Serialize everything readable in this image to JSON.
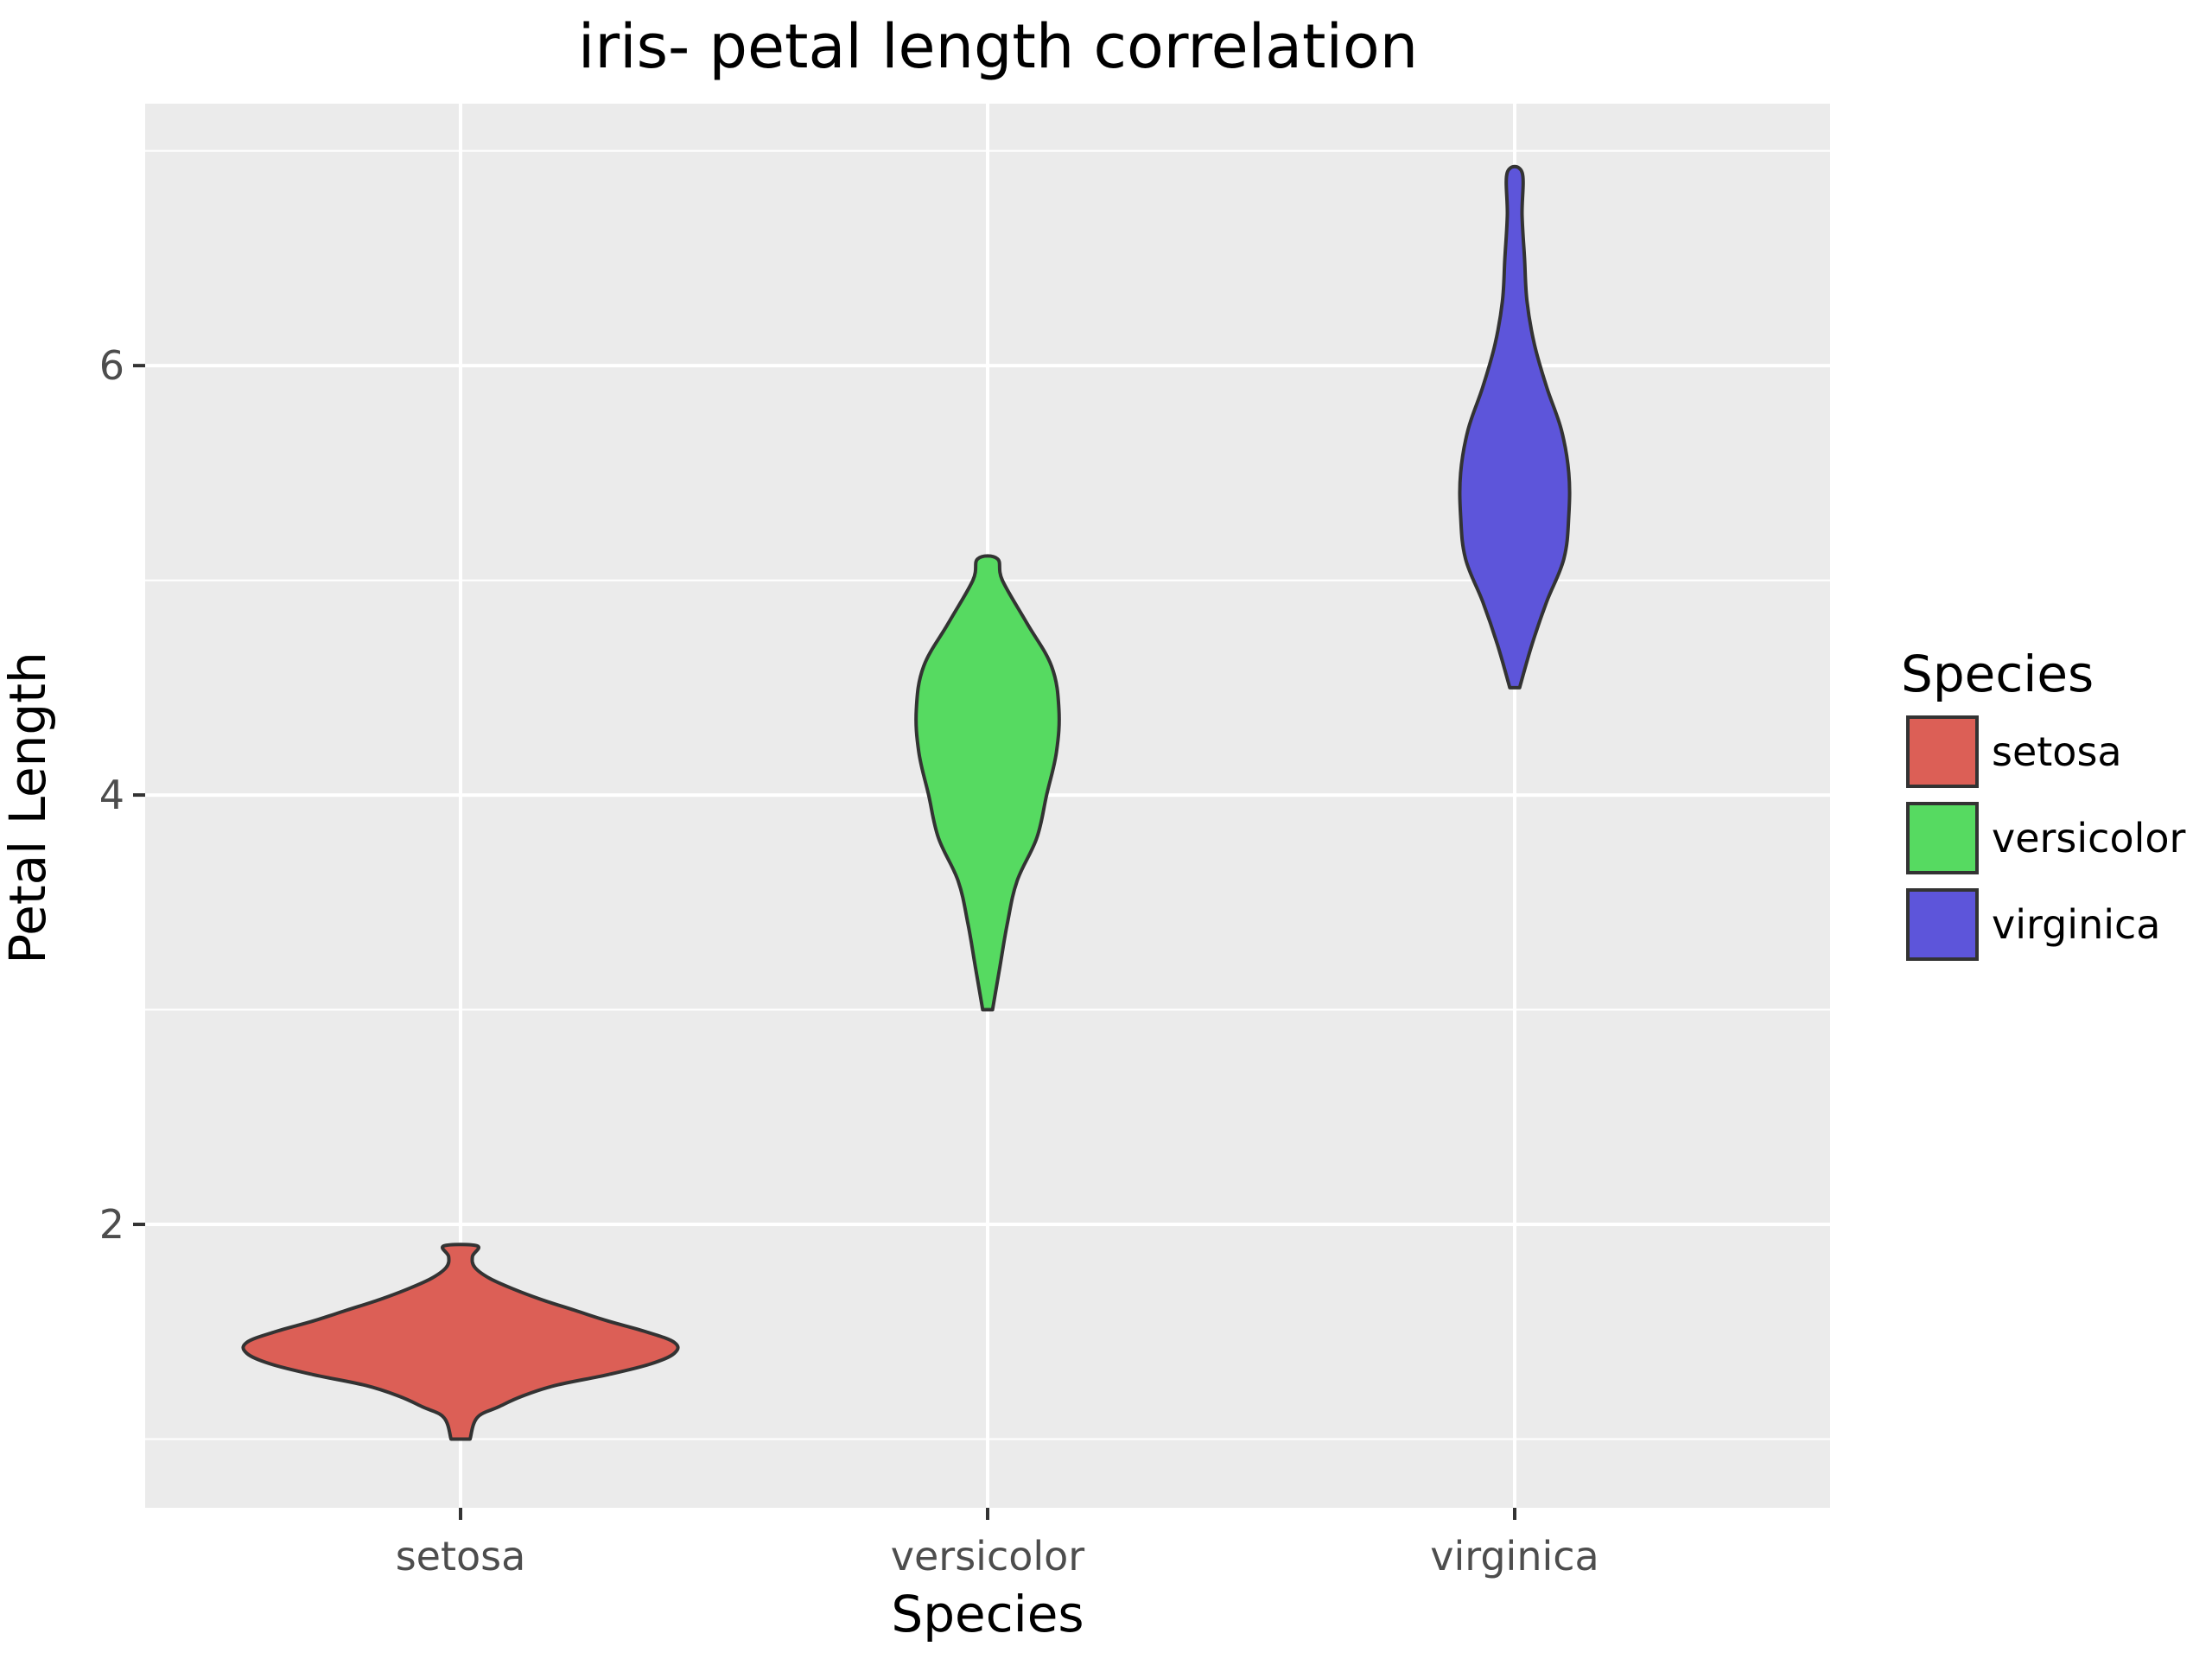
{
  "chart_data": {
    "type": "violin",
    "title": "iris- petal length correlation",
    "xlabel": "Species",
    "ylabel": "Petal Length",
    "categories": [
      "setosa",
      "versicolor",
      "virginica"
    ],
    "yticks": [
      2,
      4,
      6
    ],
    "ylim": [
      0.68,
      7.22
    ],
    "grid": true,
    "legend": {
      "title": "Species",
      "placement": "right",
      "entries": [
        "setosa",
        "versicolor",
        "virginica"
      ]
    },
    "colors": {
      "setosa": "#dc5f56",
      "versicolor": "#56da61",
      "virginica": "#5d55da",
      "panel": "#ebebeb",
      "grid": "#ffffff",
      "outline": "#333333"
    },
    "series": [
      {
        "name": "setosa",
        "min": 1.0,
        "max": 1.9,
        "density": [
          [
            1.0,
            0.04
          ],
          [
            1.1,
            0.07
          ],
          [
            1.15,
            0.16
          ],
          [
            1.2,
            0.26
          ],
          [
            1.25,
            0.4
          ],
          [
            1.3,
            0.62
          ],
          [
            1.35,
            0.8
          ],
          [
            1.4,
            0.9
          ],
          [
            1.45,
            0.9
          ],
          [
            1.5,
            0.78
          ],
          [
            1.55,
            0.62
          ],
          [
            1.6,
            0.48
          ],
          [
            1.65,
            0.34
          ],
          [
            1.7,
            0.22
          ],
          [
            1.75,
            0.12
          ],
          [
            1.8,
            0.06
          ],
          [
            1.85,
            0.05
          ],
          [
            1.9,
            0.07
          ]
        ]
      },
      {
        "name": "versicolor",
        "min": 3.0,
        "max": 5.1,
        "density": [
          [
            3.0,
            0.02
          ],
          [
            3.2,
            0.05
          ],
          [
            3.4,
            0.08
          ],
          [
            3.6,
            0.12
          ],
          [
            3.8,
            0.2
          ],
          [
            4.0,
            0.24
          ],
          [
            4.2,
            0.28
          ],
          [
            4.4,
            0.29
          ],
          [
            4.6,
            0.26
          ],
          [
            4.8,
            0.16
          ],
          [
            5.0,
            0.06
          ],
          [
            5.1,
            0.04
          ]
        ]
      },
      {
        "name": "virginica",
        "min": 4.5,
        "max": 6.9,
        "density": [
          [
            4.5,
            0.02
          ],
          [
            4.7,
            0.07
          ],
          [
            4.9,
            0.13
          ],
          [
            5.1,
            0.2
          ],
          [
            5.3,
            0.22
          ],
          [
            5.5,
            0.22
          ],
          [
            5.7,
            0.19
          ],
          [
            5.9,
            0.13
          ],
          [
            6.1,
            0.08
          ],
          [
            6.3,
            0.05
          ],
          [
            6.5,
            0.04
          ],
          [
            6.7,
            0.03
          ],
          [
            6.9,
            0.03
          ]
        ]
      }
    ]
  }
}
